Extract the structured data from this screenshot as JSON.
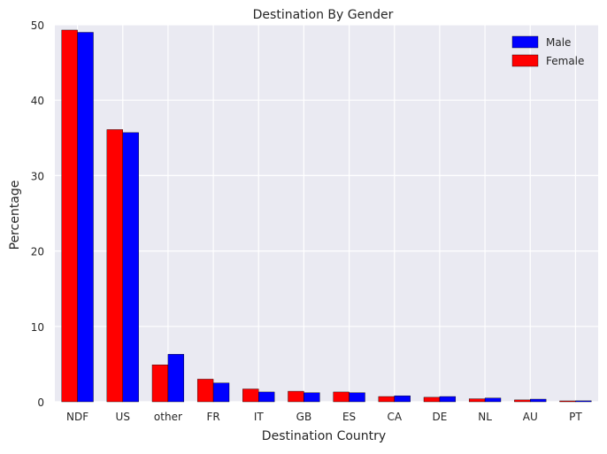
{
  "chart_data": {
    "type": "bar",
    "title": "Destination By Gender",
    "xlabel": "Destination Country",
    "ylabel": "Percentage",
    "categories": [
      "NDF",
      "US",
      "other",
      "FR",
      "IT",
      "GB",
      "ES",
      "CA",
      "DE",
      "NL",
      "AU",
      "PT"
    ],
    "series": [
      {
        "name": "Female",
        "color": "#ff0000",
        "values": [
          49.3,
          36.1,
          4.9,
          3.0,
          1.7,
          1.4,
          1.3,
          0.7,
          0.6,
          0.4,
          0.25,
          0.12
        ]
      },
      {
        "name": "Male",
        "color": "#0000ff",
        "values": [
          49.0,
          35.7,
          6.3,
          2.5,
          1.3,
          1.2,
          1.2,
          0.8,
          0.7,
          0.5,
          0.35,
          0.13
        ]
      }
    ],
    "ylim": [
      0,
      50
    ],
    "yticks": [
      0,
      10,
      20,
      30,
      40,
      50
    ],
    "grid": true,
    "legend_position": "top-right",
    "legend_order": [
      "Male",
      "Female"
    ],
    "background_color": "#eaeaf2",
    "grid_color": "#ffffff"
  }
}
